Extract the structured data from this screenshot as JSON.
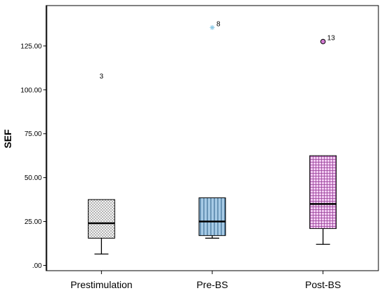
{
  "chart_data": {
    "type": "boxplot",
    "ylabel": "SEF",
    "xlabel": "",
    "ylim": [
      -3,
      148
    ],
    "yticks": [
      0,
      25,
      50,
      75,
      100,
      125
    ],
    "ytick_labels": [
      ".00",
      "25.00",
      "50.00",
      "75.00",
      "100.00",
      "125.00"
    ],
    "grid": false,
    "categories": [
      "Prestimulation",
      "Pre-BS",
      "Post-BS"
    ],
    "boxes": [
      {
        "category": "Prestimulation",
        "whisker_low": 6.5,
        "q1": 15.5,
        "median": 24,
        "q3": 37.5,
        "whisker_high": 37.5,
        "outliers": [
          {
            "value": 108,
            "label": "3",
            "marker": "none"
          }
        ],
        "fill": "#f4f4f4",
        "pattern": "dots",
        "pattern_color": "#555555"
      },
      {
        "category": "Pre-BS",
        "whisker_low": 15.5,
        "q1": 17,
        "median": 25,
        "q3": 38.5,
        "whisker_high": 38.5,
        "outliers": [
          {
            "value": 135.5,
            "label": "8",
            "marker": "star",
            "color": "#8ecae6"
          }
        ],
        "fill": "#a7cbe6",
        "pattern": "vertical-lines",
        "pattern_color": "#2a5d86"
      },
      {
        "category": "Post-BS",
        "whisker_low": 12,
        "q1": 21,
        "median": 35,
        "q3": 62.5,
        "whisker_high": 62.5,
        "outliers": [
          {
            "value": 127.5,
            "label": "13",
            "marker": "circle",
            "color": "#d27bd2"
          }
        ],
        "fill": "#f2cdf2",
        "pattern": "grid",
        "pattern_color": "#9a3f9a"
      }
    ]
  }
}
